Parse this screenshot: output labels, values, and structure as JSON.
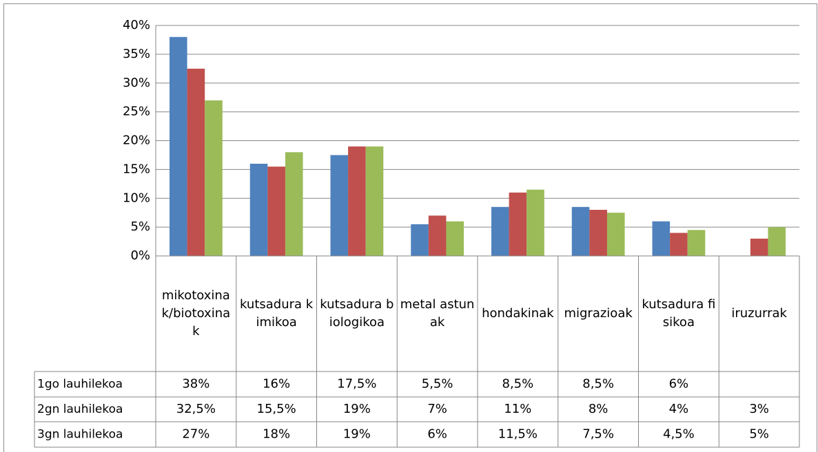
{
  "chart_data": {
    "type": "bar",
    "categories": [
      "mikotoxinak/biotoxinak",
      "kutsadura kimikoa",
      "kutsadura biologikoa",
      "metal astunak",
      "hondakinak",
      "migrazioak",
      "kutsadura fisikoa",
      "iruzurrak"
    ],
    "series": [
      {
        "name": "1go lauhilekoa",
        "color": "#4f81bd",
        "values": [
          38,
          16,
          17.5,
          5.5,
          8.5,
          8.5,
          6,
          null
        ],
        "value_labels": [
          "38%",
          "16%",
          "17,5%",
          "5,5%",
          "8,5%",
          "8,5%",
          "6%",
          null
        ]
      },
      {
        "name": "2gn lauhilekoa",
        "color": "#c0504d",
        "values": [
          32.5,
          15.5,
          19,
          7,
          11,
          8,
          4,
          3
        ],
        "value_labels": [
          "32,5%",
          "15,5%",
          "19%",
          "7%",
          "11%",
          "8%",
          "4%",
          "3%"
        ]
      },
      {
        "name": "3gn lauhilekoa",
        "color": "#9bbb59",
        "values": [
          27,
          18,
          19,
          6,
          11.5,
          7.5,
          4.5,
          5
        ],
        "value_labels": [
          "27%",
          "18%",
          "19%",
          "6%",
          "11,5%",
          "7,5%",
          "4,5%",
          "5%"
        ]
      }
    ],
    "ylim": [
      0,
      40
    ],
    "yticks": [
      {
        "value": 0,
        "label": "0%"
      },
      {
        "value": 5,
        "label": "5%"
      },
      {
        "value": 10,
        "label": "10%"
      },
      {
        "value": 15,
        "label": "15%"
      },
      {
        "value": 20,
        "label": "20%"
      },
      {
        "value": 25,
        "label": "25%"
      },
      {
        "value": 30,
        "label": "30%"
      },
      {
        "value": 35,
        "label": "35%"
      },
      {
        "value": 40,
        "label": "40%"
      }
    ],
    "grid": true
  }
}
